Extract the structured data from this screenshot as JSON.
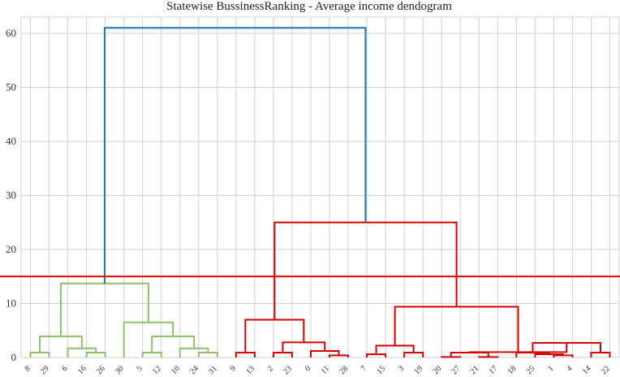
{
  "chart_data": {
    "type": "dendrogram",
    "title": "Statewise BussinessRanking - Average income dendogram",
    "xlabel": "",
    "ylabel": "",
    "ylim": [
      0,
      63
    ],
    "yticks": [
      0,
      10,
      20,
      30,
      40,
      50,
      60
    ],
    "grid": true,
    "leaves": [
      "8",
      "29",
      "6",
      "16",
      "26",
      "30",
      "5",
      "12",
      "10",
      "24",
      "31",
      "9",
      "13",
      "2",
      "23",
      "0",
      "11",
      "28",
      "7",
      "15",
      "3",
      "19",
      "20",
      "27",
      "21",
      "17",
      "18",
      "25",
      "1",
      "4",
      "14",
      "22"
    ],
    "threshold": 15,
    "links": [
      {
        "a": 0,
        "b": 1,
        "h": 0.9,
        "color": "#8dc26a"
      },
      {
        "a": 3,
        "b": 4,
        "h": 0.9,
        "color": "#8dc26a"
      },
      {
        "a": 2,
        "b": 3.5,
        "h": 1.7,
        "color": "#8dc26a"
      },
      {
        "a": 0.5,
        "b": 2.75,
        "h": 3.9,
        "color": "#8dc26a"
      },
      {
        "a": 6,
        "b": 7,
        "h": 0.9,
        "color": "#8dc26a"
      },
      {
        "a": 9,
        "b": 10,
        "h": 0.9,
        "color": "#8dc26a"
      },
      {
        "a": 8,
        "b": 9.5,
        "h": 1.7,
        "color": "#8dc26a"
      },
      {
        "a": 6.5,
        "b": 8.75,
        "h": 3.9,
        "color": "#8dc26a"
      },
      {
        "a": 5,
        "b": 7.625,
        "h": 6.5,
        "color": "#8dc26a"
      },
      {
        "a": 1.625,
        "b": 6.3125,
        "h": 13.7,
        "color": "#8dc26a"
      },
      {
        "a": 11,
        "b": 12,
        "h": 0.9,
        "color": "#d40000"
      },
      {
        "a": 13,
        "b": 14,
        "h": 0.9,
        "color": "#d40000"
      },
      {
        "a": 16,
        "b": 17,
        "h": 0.4,
        "color": "#d40000"
      },
      {
        "a": 15,
        "b": 16.5,
        "h": 1.2,
        "color": "#d40000"
      },
      {
        "a": 13.5,
        "b": 15.75,
        "h": 2.8,
        "color": "#d40000"
      },
      {
        "a": 11.5,
        "b": 14.625,
        "h": 7.0,
        "color": "#d40000"
      },
      {
        "a": 18,
        "b": 19,
        "h": 0.6,
        "color": "#d40000"
      },
      {
        "a": 20,
        "b": 21,
        "h": 0.9,
        "color": "#d40000"
      },
      {
        "a": 18.5,
        "b": 20.5,
        "h": 2.2,
        "color": "#d40000"
      },
      {
        "a": 22,
        "b": 23,
        "h": 0.1,
        "color": "#d40000"
      },
      {
        "a": 24,
        "b": 25,
        "h": 0.1,
        "color": "#d40000"
      },
      {
        "a": 28,
        "b": 29,
        "h": 0.4,
        "color": "#d40000"
      },
      {
        "a": 27,
        "b": 28.5,
        "h": 0.6,
        "color": "#d40000"
      },
      {
        "a": 26,
        "b": 27.75,
        "h": 0.9,
        "color": "#d40000"
      },
      {
        "a": 22.5,
        "b": 24.5,
        "h": 0.9,
        "color": "#d40000"
      },
      {
        "a": 30,
        "b": 31,
        "h": 0.9,
        "color": "#d40000"
      },
      {
        "a": 26.875,
        "b": 30.5,
        "h": 2.7,
        "color": "#d40000"
      },
      {
        "a": 23.5,
        "b": 28.6875,
        "h": 1.0,
        "color": "#d40000"
      },
      {
        "a": 19.5,
        "b": 26.09375,
        "h": 9.4,
        "color": "#d40000"
      },
      {
        "a": 13.0625,
        "b": 22.796875,
        "h": 25.0,
        "color": "#d40000"
      },
      {
        "a": 3.96875,
        "b": 17.9296875,
        "h": 61.0,
        "color": "#1f77b4"
      }
    ]
  }
}
